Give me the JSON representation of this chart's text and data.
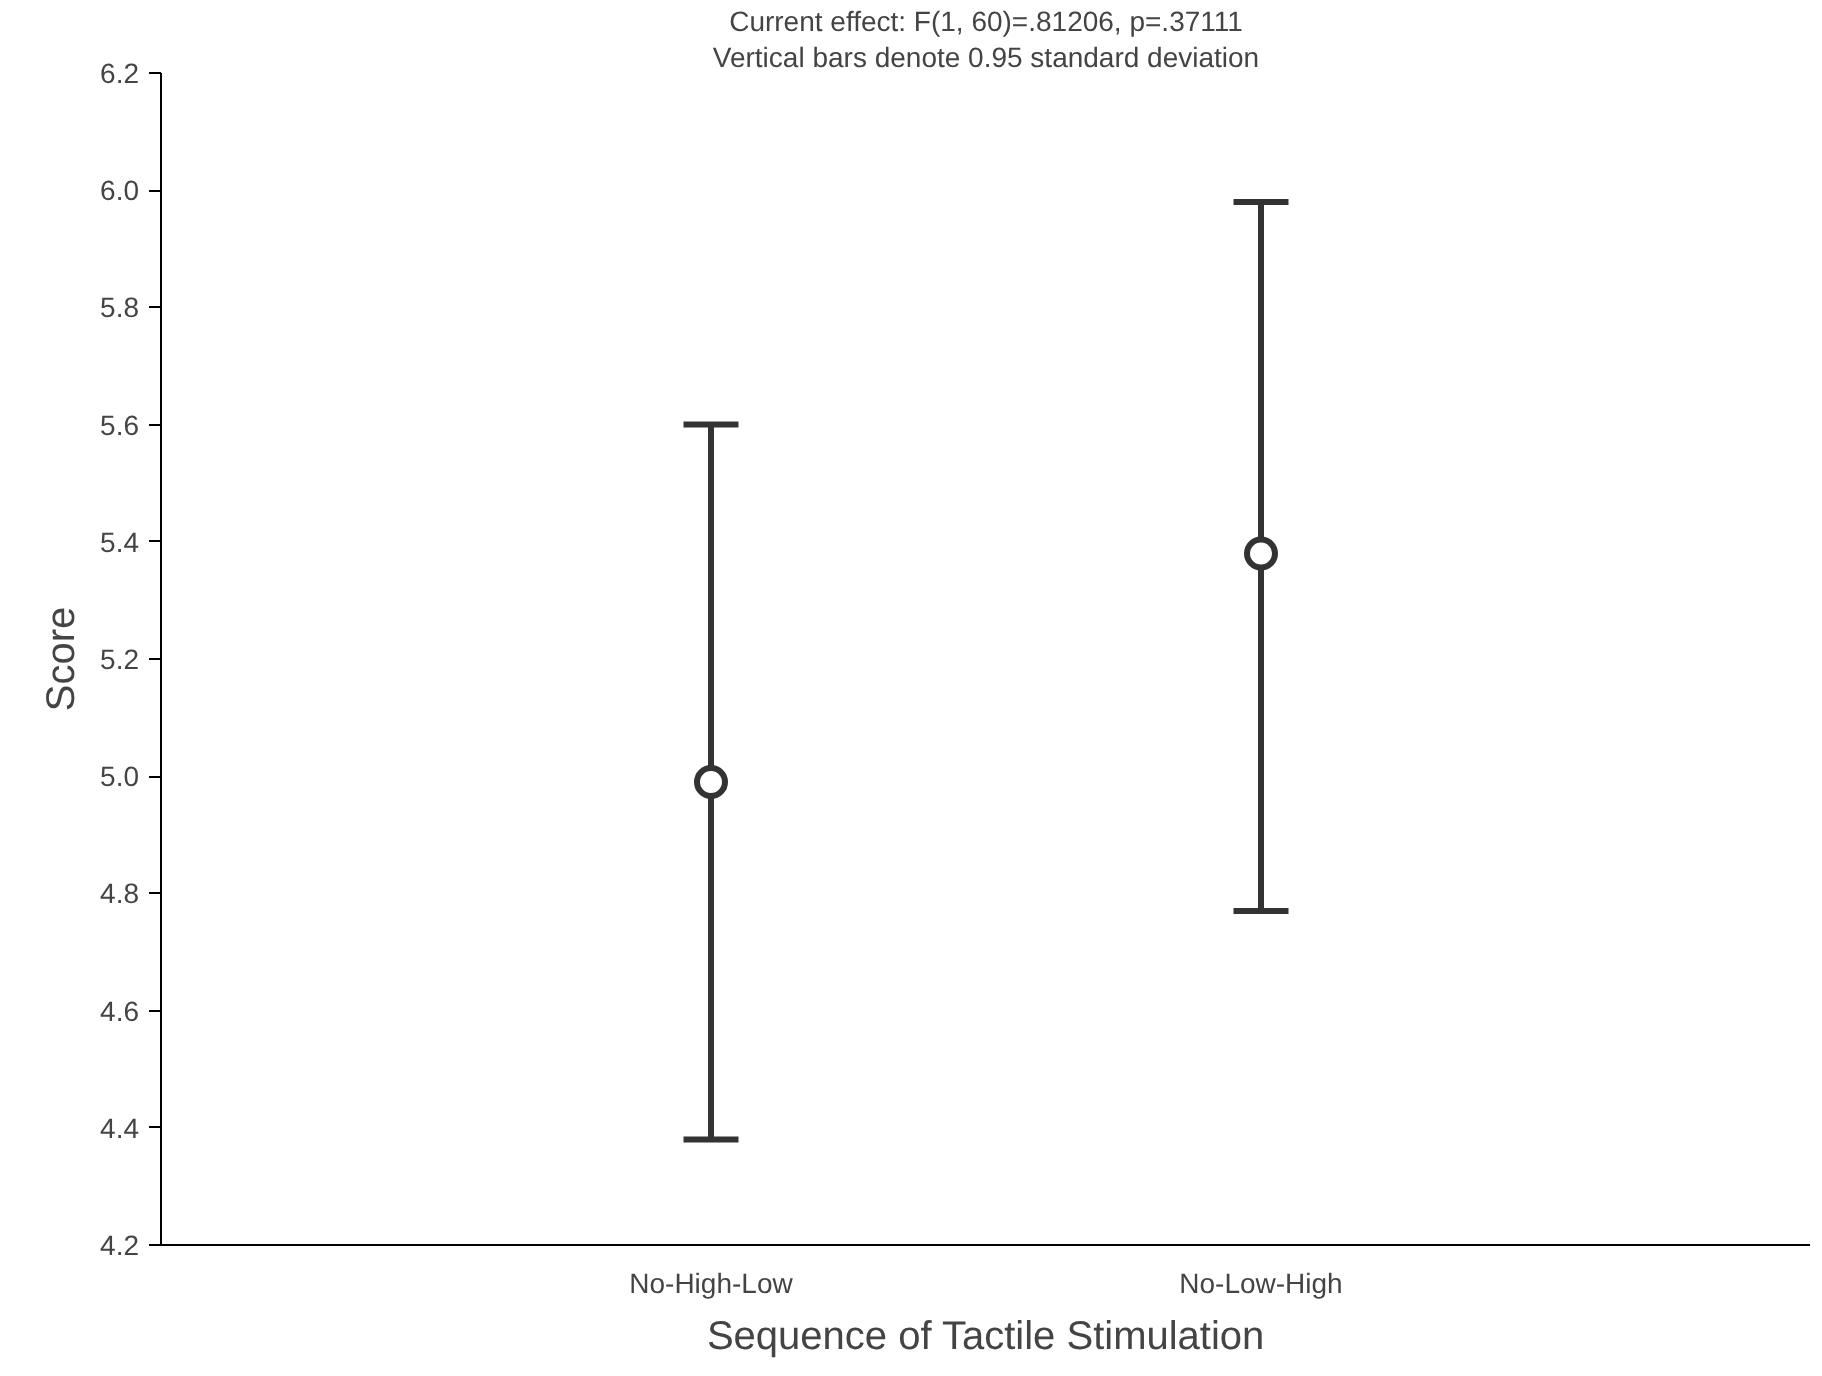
{
  "chart_data": {
    "type": "scatter",
    "title": "Current effect: F(1, 60)=.81206, p=.37111",
    "subtitle": "Vertical bars denote 0.95 standard deviation",
    "xlabel": "Sequence of Tactile Stimulation",
    "ylabel": "Score",
    "categories": [
      "No-High-Low",
      "No-Low-High"
    ],
    "series": [
      {
        "color": "#333333",
        "values": [
          4.99,
          5.38
        ],
        "errors": [
          [
            4.38,
            5.6
          ],
          [
            4.77,
            5.98
          ]
        ]
      }
    ],
    "ylim": [
      4.2,
      6.2
    ],
    "yticks": [
      {
        "value": 4.2,
        "label": "4.2"
      },
      {
        "value": 4.4,
        "label": "4.4"
      },
      {
        "value": 4.6,
        "label": "4.6"
      },
      {
        "value": 4.8,
        "label": "4.8"
      },
      {
        "value": 5.0,
        "label": "5.0"
      },
      {
        "value": 5.2,
        "label": "5.2"
      },
      {
        "value": 5.4,
        "label": "5.4"
      },
      {
        "value": 5.6,
        "label": "5.6"
      },
      {
        "value": 5.8,
        "label": "5.8"
      },
      {
        "value": 6.0,
        "label": "6.0"
      },
      {
        "value": 6.2,
        "label": "6.2"
      }
    ],
    "grid": false,
    "marker": "circle"
  }
}
